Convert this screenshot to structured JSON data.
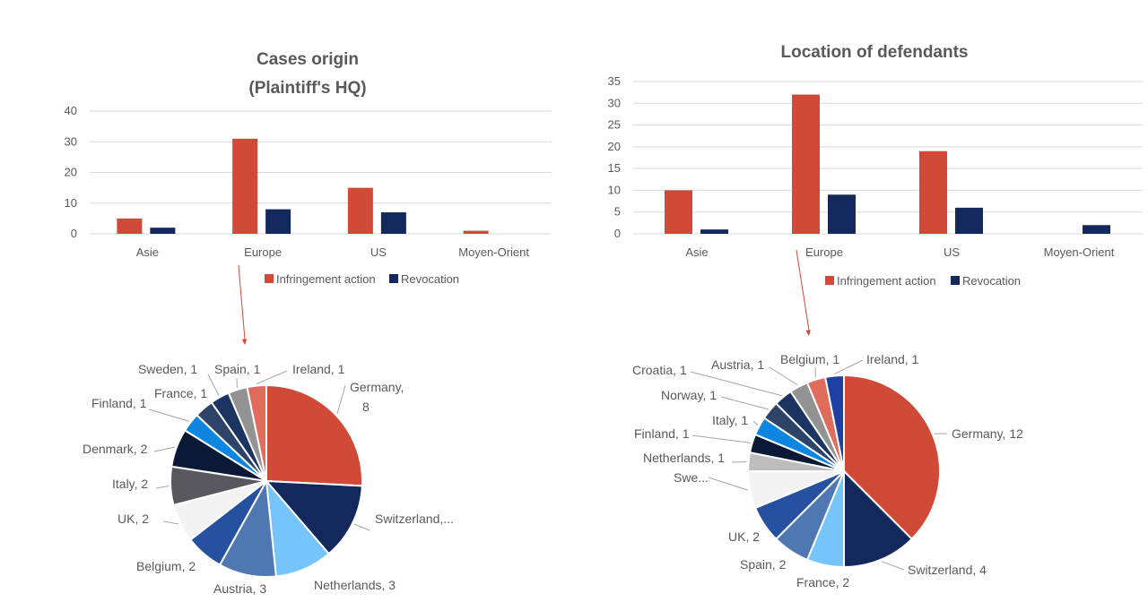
{
  "chart_data": [
    {
      "type": "bar",
      "title": "Cases origin",
      "subtitle": "(Plaintiff's HQ)",
      "categories": [
        "Asie",
        "Europe",
        "US",
        "Moyen-Orient"
      ],
      "series": [
        {
          "name": "Infringement action",
          "values": [
            5,
            31,
            15,
            1
          ],
          "color": "#D04A37"
        },
        {
          "name": "Revocation",
          "values": [
            2,
            8,
            7,
            0
          ],
          "color": "#13285C"
        }
      ],
      "ylim": [
        0,
        40
      ],
      "yticks": [
        0,
        10,
        20,
        30,
        40
      ],
      "grid": true,
      "legend": "bottom"
    },
    {
      "type": "bar",
      "title": "Location of defendants",
      "categories": [
        "Asie",
        "Europe",
        "US",
        "Moyen-Orient"
      ],
      "series": [
        {
          "name": "Infringement action",
          "values": [
            10,
            32,
            19,
            0
          ],
          "color": "#D04A37"
        },
        {
          "name": "Revocation",
          "values": [
            1,
            9,
            6,
            2
          ],
          "color": "#13285C"
        }
      ],
      "ylim": [
        0,
        35
      ],
      "yticks": [
        0,
        5,
        10,
        15,
        20,
        25,
        30,
        35
      ],
      "grid": true,
      "legend": "bottom"
    },
    {
      "type": "pie",
      "slices": [
        {
          "name": "Germany",
          "value": 8,
          "label": "Germany,",
          "label2": "8",
          "color": "#D04A37"
        },
        {
          "name": "Switzerland",
          "value": 4,
          "label": "Switzerland,...",
          "color": "#13285C"
        },
        {
          "name": "Netherlands",
          "value": 3,
          "label": "Netherlands, 3",
          "color": "#75C4FB"
        },
        {
          "name": "Austria",
          "value": 3,
          "label": "Austria, 3",
          "color": "#4F78B3"
        },
        {
          "name": "Belgium",
          "value": 2,
          "label": "Belgium, 2",
          "color": "#2650A0"
        },
        {
          "name": "UK",
          "value": 2,
          "label": "UK, 2",
          "color": "#F3F3F3"
        },
        {
          "name": "Italy",
          "value": 2,
          "label": "Italy, 2",
          "color": "#58585E"
        },
        {
          "name": "Denmark",
          "value": 2,
          "label": "Denmark, 2",
          "color": "#0B1836"
        },
        {
          "name": "Finland",
          "value": 1,
          "label": "Finland, 1",
          "color": "#0C86E0"
        },
        {
          "name": "France",
          "value": 1,
          "label": "France, 1",
          "color": "#2D4468"
        },
        {
          "name": "Sweden",
          "value": 1,
          "label": "Sweden, 1",
          "color": "#1B3461"
        },
        {
          "name": "Spain",
          "value": 1,
          "label": "Spain, 1",
          "color": "#939393"
        },
        {
          "name": "Ireland",
          "value": 1,
          "label": "Ireland, 1",
          "color": "#E06C5C"
        }
      ]
    },
    {
      "type": "pie",
      "slices": [
        {
          "name": "Germany",
          "value": 12,
          "label": "Germany, 12",
          "color": "#D04A37"
        },
        {
          "name": "Switzerland",
          "value": 4,
          "label": "Switzerland, 4",
          "color": "#13285C"
        },
        {
          "name": "France",
          "value": 2,
          "label": "France, 2",
          "color": "#75C4FB"
        },
        {
          "name": "Spain",
          "value": 2,
          "label": "Spain, 2",
          "color": "#4F78B3"
        },
        {
          "name": "UK",
          "value": 2,
          "label": "UK, 2",
          "color": "#2650A0"
        },
        {
          "name": "Swe...",
          "value": 2,
          "label": "Swe...",
          "color": "#F3F3F3"
        },
        {
          "name": "Netherlands",
          "value": 1,
          "label": "Netherlands, 1",
          "color": "#BDBDBD"
        },
        {
          "name": "Finland",
          "value": 1,
          "label": "Finland, 1",
          "color": "#0B1836"
        },
        {
          "name": "Italy",
          "value": 1,
          "label": "Italy, 1",
          "color": "#0C86E0"
        },
        {
          "name": "Norway",
          "value": 1,
          "label": "Norway, 1",
          "color": "#2D4468"
        },
        {
          "name": "Croatia",
          "value": 1,
          "label": "Croatia, 1",
          "color": "#1B3461"
        },
        {
          "name": "Austria",
          "value": 1,
          "label": "Austria, 1",
          "color": "#939393"
        },
        {
          "name": "Belgium",
          "value": 1,
          "label": "Belgium, 1",
          "color": "#E06C5C"
        },
        {
          "name": "Ireland",
          "value": 1,
          "label": "Ireland, 1",
          "color": "#1E40A0"
        }
      ]
    }
  ],
  "colors": {
    "text": "#595959",
    "grid": "#D9D9D9",
    "arrow": "#D04A37"
  }
}
